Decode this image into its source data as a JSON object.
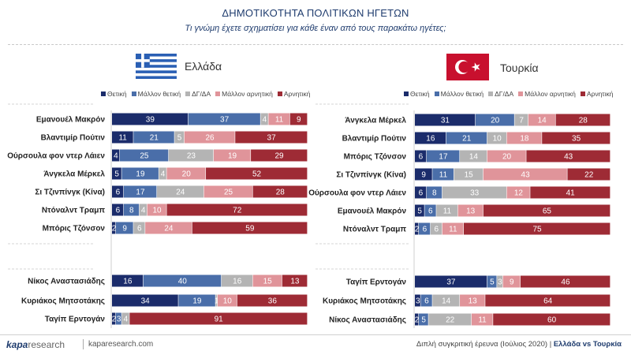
{
  "title": "ΔΗΜΟΤΙΚΟΤΗΤΑ ΠΟΛΙΤΙΚΩΝ ΗΓΕΤΩΝ",
  "subtitle": "Τι γνώμη έχετε σχηματίσει για κάθε έναν από τους παρακάτω ηγέτες;",
  "legend": [
    "Θετική",
    "Μάλλον θετική",
    "ΔΓ/ΔΑ",
    "Μάλλον αρνητική",
    "Αρνητική"
  ],
  "colors": [
    "#1b2c6b",
    "#4a6ea9",
    "#b4b4b4",
    "#e0949a",
    "#9e2b35"
  ],
  "icons": [
    "greece-flag-icon",
    "turkey-flag-icon"
  ],
  "footer": {
    "brand_1": "kapa",
    "brand_2": "research",
    "site": "kaparesearch.com",
    "right_1": "Διπλή συγκριτική έρευνα (Ιούλιος 2020)",
    "right_sep": "|",
    "right_2": "Ελλάδα vs Τουρκία"
  },
  "chart_data": [
    {
      "type": "bar",
      "orientation": "horizontal",
      "stacked": true,
      "title": "Ελλάδα",
      "xlim": [
        0,
        100
      ],
      "series_names": [
        "Θετική",
        "Μάλλον θετική",
        "ΔΓ/ΔΑ",
        "Μάλλον αρνητική",
        "Αρνητική"
      ],
      "groups": [
        {
          "categories": [
            "Εμανουέλ Μακρόν",
            "Βλαντιμίρ Πούτιν",
            "Ούρσουλα φον ντερ Λάιεν",
            "Άνγκελα Μέρκελ",
            "Σι Τζινπίνγκ (Κίνα)",
            "Ντόναλντ Τραμπ",
            "Μπόρις Τζόνσον"
          ],
          "values": [
            [
              39,
              37,
              4,
              11,
              9
            ],
            [
              11,
              21,
              5,
              26,
              37
            ],
            [
              4,
              25,
              23,
              19,
              29
            ],
            [
              5,
              19,
              4,
              20,
              52
            ],
            [
              6,
              17,
              24,
              25,
              28
            ],
            [
              6,
              8,
              4,
              10,
              72
            ],
            [
              2,
              9,
              6,
              24,
              59
            ]
          ]
        },
        {
          "categories": [
            "Νίκος Αναστασιάδης",
            "Κυριάκος Μητσοτάκης",
            "Ταγίπ Ερντογάν"
          ],
          "values": [
            [
              16,
              40,
              16,
              15,
              13
            ],
            [
              34,
              19,
              1,
              10,
              36
            ],
            [
              2,
              3,
              4,
              0,
              91
            ]
          ]
        }
      ]
    },
    {
      "type": "bar",
      "orientation": "horizontal",
      "stacked": true,
      "title": "Τουρκία",
      "xlim": [
        0,
        100
      ],
      "series_names": [
        "Θετική",
        "Μάλλον θετική",
        "ΔΓ/ΔΑ",
        "Μάλλον αρνητική",
        "Αρνητική"
      ],
      "groups": [
        {
          "categories": [
            "Άνγκελα Μέρκελ",
            "Βλαντιμίρ Πούτιν",
            "Μπόρις Τζόνσον",
            "Σι Τζινπίνγκ (Κίνα)",
            "Ούρσουλα φον ντερ Λάιεν",
            "Εμανουέλ Μακρόν",
            "Ντόναλντ Τραμπ"
          ],
          "values": [
            [
              31,
              20,
              7,
              14,
              28
            ],
            [
              16,
              21,
              10,
              18,
              35
            ],
            [
              6,
              17,
              14,
              20,
              43
            ],
            [
              9,
              11,
              15,
              43,
              22
            ],
            [
              6,
              8,
              33,
              12,
              41
            ],
            [
              5,
              6,
              11,
              13,
              65
            ],
            [
              2,
              6,
              6,
              11,
              75
            ]
          ]
        },
        {
          "categories": [
            "Ταγίπ Ερντογάν",
            "Κυριάκος Μητσοτάκης",
            "Νίκος Αναστασιάδης"
          ],
          "values": [
            [
              37,
              5,
              3,
              9,
              46
            ],
            [
              3,
              6,
              14,
              13,
              64
            ],
            [
              2,
              5,
              22,
              11,
              60
            ]
          ]
        }
      ]
    }
  ]
}
